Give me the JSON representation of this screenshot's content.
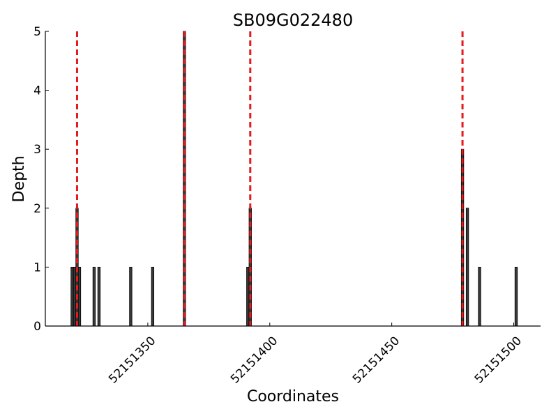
{
  "chart_data": {
    "type": "bar",
    "title": "SB09G022480",
    "xlabel": "Coordinates",
    "ylabel": "Depth",
    "x": [
      52151319,
      52151320,
      52151321,
      52151322,
      52151328,
      52151330,
      52151343,
      52151352,
      52151365,
      52151391,
      52151392,
      52151479,
      52151481,
      52151486,
      52151501
    ],
    "values": [
      1,
      1,
      2,
      1,
      1,
      1,
      1,
      1,
      5,
      1,
      2,
      3,
      2,
      1,
      1
    ],
    "color": "#3a3a3a",
    "vlines": [
      52151321,
      52151365,
      52151392,
      52151479
    ],
    "vline_color": "#e41a1c",
    "xlim": [
      52151308,
      52151511
    ],
    "xticks": [
      52151350,
      52151400,
      52151450,
      52151500
    ],
    "ylim": [
      0,
      5
    ],
    "yticks": [
      0,
      1,
      2,
      3,
      4,
      5
    ]
  }
}
